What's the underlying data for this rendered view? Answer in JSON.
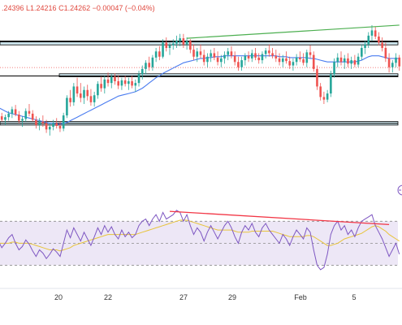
{
  "header": {
    "ohlc_text": ".24396  L1.24216  C1.24262  −0.00047 (−0.04%)"
  },
  "colors": {
    "up": "#26a69a",
    "down": "#ef5350",
    "ma": "#4a7cf0",
    "rsi": "#7e57c2",
    "rsi_ma": "#e8c43a",
    "rsi_band": "#ede7f6",
    "trend_price": "#4caf50",
    "trend_rsi": "#f23645",
    "zone_fill": "#cfe8f0",
    "zone_edge": "#000000"
  },
  "chart_data": [
    {
      "type": "candlestick",
      "title": "",
      "x_tick_labels": [
        "20",
        "22",
        "27",
        "29",
        "Feb",
        "5"
      ],
      "y_visible_range": [
        1.2312,
        1.249
      ],
      "horizontal_zones": [
        {
          "low": 1.24555,
          "high": 1.246
        },
        {
          "low": 1.2419,
          "high": 1.24225
        },
        {
          "low": 1.2364,
          "high": 1.2368
        }
      ],
      "horizontal_lines": [
        1.2459,
        1.242,
        1.2366
      ],
      "current_price_line": 1.24296,
      "trendline": {
        "from_index": 55,
        "from_price": 1.2463,
        "to_index": 117,
        "to_price": 1.2478
      },
      "candles": [
        [
          1.2377,
          1.2381,
          1.237,
          1.2374
        ],
        [
          1.2374,
          1.2378,
          1.2368,
          1.237
        ],
        [
          1.237,
          1.2376,
          1.2364,
          1.2373
        ],
        [
          1.2373,
          1.238,
          1.2369,
          1.2377
        ],
        [
          1.2377,
          1.2385,
          1.2372,
          1.2382
        ],
        [
          1.2382,
          1.2387,
          1.2374,
          1.2376
        ],
        [
          1.2376,
          1.238,
          1.2366,
          1.2369
        ],
        [
          1.2369,
          1.2374,
          1.2362,
          1.2371
        ],
        [
          1.2371,
          1.2383,
          1.2368,
          1.238
        ],
        [
          1.238,
          1.2388,
          1.2374,
          1.2377
        ],
        [
          1.2377,
          1.2381,
          1.2368,
          1.237
        ],
        [
          1.237,
          1.2374,
          1.236,
          1.2364
        ],
        [
          1.2364,
          1.2372,
          1.2358,
          1.2368
        ],
        [
          1.2368,
          1.2375,
          1.2362,
          1.2366
        ],
        [
          1.2366,
          1.237,
          1.2355,
          1.2359
        ],
        [
          1.2359,
          1.2366,
          1.2352,
          1.2362
        ],
        [
          1.2362,
          1.237,
          1.2358,
          1.2366
        ],
        [
          1.2366,
          1.2372,
          1.236,
          1.2363
        ],
        [
          1.2363,
          1.2368,
          1.2356,
          1.236
        ],
        [
          1.236,
          1.2378,
          1.2357,
          1.2375
        ],
        [
          1.2375,
          1.2398,
          1.2372,
          1.2395
        ],
        [
          1.2395,
          1.2404,
          1.2385,
          1.239
        ],
        [
          1.239,
          1.2412,
          1.2386,
          1.2408
        ],
        [
          1.2408,
          1.2418,
          1.2396,
          1.24
        ],
        [
          1.24,
          1.2412,
          1.239,
          1.2395
        ],
        [
          1.2395,
          1.2408,
          1.2388,
          1.2404
        ],
        [
          1.2404,
          1.241,
          1.2392,
          1.2397
        ],
        [
          1.2397,
          1.2405,
          1.2386,
          1.239
        ],
        [
          1.239,
          1.2402,
          1.2385,
          1.2398
        ],
        [
          1.2398,
          1.2414,
          1.2394,
          1.2411
        ],
        [
          1.2411,
          1.2419,
          1.2402,
          1.2406
        ],
        [
          1.2406,
          1.242,
          1.24,
          1.2416
        ],
        [
          1.2416,
          1.2424,
          1.2408,
          1.2412
        ],
        [
          1.2412,
          1.2422,
          1.2406,
          1.2419
        ],
        [
          1.2419,
          1.2423,
          1.241,
          1.2414
        ],
        [
          1.2414,
          1.2421,
          1.2405,
          1.2409
        ],
        [
          1.2409,
          1.2418,
          1.2404,
          1.2415
        ],
        [
          1.2415,
          1.242,
          1.2408,
          1.2411
        ],
        [
          1.2411,
          1.2418,
          1.2404,
          1.2414
        ],
        [
          1.2414,
          1.242,
          1.2406,
          1.2409
        ],
        [
          1.2409,
          1.2416,
          1.2402,
          1.2412
        ],
        [
          1.2412,
          1.2426,
          1.2408,
          1.2422
        ],
        [
          1.2422,
          1.2432,
          1.2416,
          1.2428
        ],
        [
          1.2428,
          1.2438,
          1.2422,
          1.2435
        ],
        [
          1.2435,
          1.2442,
          1.2426,
          1.243
        ],
        [
          1.243,
          1.2444,
          1.2426,
          1.2441
        ],
        [
          1.2441,
          1.2452,
          1.2436,
          1.2448
        ],
        [
          1.2448,
          1.2454,
          1.2438,
          1.2442
        ],
        [
          1.2442,
          1.2462,
          1.244,
          1.2458
        ],
        [
          1.2458,
          1.2464,
          1.2448,
          1.2452
        ],
        [
          1.2452,
          1.2458,
          1.2444,
          1.2455
        ],
        [
          1.2455,
          1.2462,
          1.245,
          1.2457
        ],
        [
          1.2457,
          1.2466,
          1.2452,
          1.246
        ],
        [
          1.246,
          1.2468,
          1.2454,
          1.2463
        ],
        [
          1.2463,
          1.2468,
          1.2452,
          1.2456
        ],
        [
          1.2456,
          1.2464,
          1.245,
          1.246
        ],
        [
          1.246,
          1.2462,
          1.2446,
          1.245
        ],
        [
          1.245,
          1.2456,
          1.2438,
          1.2442
        ],
        [
          1.2442,
          1.2452,
          1.2436,
          1.2448
        ],
        [
          1.2448,
          1.2456,
          1.244,
          1.2444
        ],
        [
          1.2444,
          1.245,
          1.2432,
          1.2436
        ],
        [
          1.2436,
          1.2446,
          1.243,
          1.2442
        ],
        [
          1.2442,
          1.245,
          1.2436,
          1.2446
        ],
        [
          1.2446,
          1.2452,
          1.2438,
          1.2441
        ],
        [
          1.2441,
          1.2448,
          1.2432,
          1.2436
        ],
        [
          1.2436,
          1.2444,
          1.243,
          1.244
        ],
        [
          1.244,
          1.2448,
          1.2434,
          1.2444
        ],
        [
          1.2444,
          1.2452,
          1.2438,
          1.2448
        ],
        [
          1.2448,
          1.2454,
          1.244,
          1.2443
        ],
        [
          1.2443,
          1.2448,
          1.2432,
          1.2436
        ],
        [
          1.2436,
          1.2442,
          1.2426,
          1.243
        ],
        [
          1.243,
          1.2442,
          1.2426,
          1.2438
        ],
        [
          1.2438,
          1.2446,
          1.2432,
          1.2443
        ],
        [
          1.2443,
          1.2448,
          1.2436,
          1.244
        ],
        [
          1.244,
          1.245,
          1.2436,
          1.2446
        ],
        [
          1.2446,
          1.2452,
          1.2438,
          1.2441
        ],
        [
          1.2441,
          1.2446,
          1.2434,
          1.2438
        ],
        [
          1.2438,
          1.2448,
          1.2434,
          1.2445
        ],
        [
          1.2445,
          1.2452,
          1.244,
          1.2449
        ],
        [
          1.2449,
          1.2456,
          1.2442,
          1.2446
        ],
        [
          1.2446,
          1.2452,
          1.244,
          1.2443
        ],
        [
          1.2443,
          1.245,
          1.2436,
          1.244
        ],
        [
          1.244,
          1.2446,
          1.2432,
          1.2436
        ],
        [
          1.2436,
          1.2444,
          1.243,
          1.244
        ],
        [
          1.244,
          1.2448,
          1.2434,
          1.2437
        ],
        [
          1.2437,
          1.2442,
          1.2428,
          1.2432
        ],
        [
          1.2432,
          1.244,
          1.2426,
          1.2436
        ],
        [
          1.2436,
          1.2445,
          1.2432,
          1.2441
        ],
        [
          1.2441,
          1.2448,
          1.2436,
          1.2439
        ],
        [
          1.2439,
          1.2446,
          1.2432,
          1.2435
        ],
        [
          1.2435,
          1.245,
          1.243,
          1.2447
        ],
        [
          1.2447,
          1.2455,
          1.244,
          1.2444
        ],
        [
          1.2444,
          1.2448,
          1.2425,
          1.2428
        ],
        [
          1.2428,
          1.2432,
          1.2404,
          1.2408
        ],
        [
          1.2408,
          1.2412,
          1.2392,
          1.2396
        ],
        [
          1.2396,
          1.2402,
          1.2388,
          1.2393
        ],
        [
          1.2393,
          1.2404,
          1.239,
          1.24
        ],
        [
          1.24,
          1.2426,
          1.2396,
          1.2422
        ],
        [
          1.2422,
          1.244,
          1.2418,
          1.2436
        ],
        [
          1.2436,
          1.2446,
          1.243,
          1.2441
        ],
        [
          1.2441,
          1.2448,
          1.2432,
          1.2436
        ],
        [
          1.2436,
          1.2444,
          1.2428,
          1.244
        ],
        [
          1.244,
          1.2446,
          1.243,
          1.2434
        ],
        [
          1.2434,
          1.2442,
          1.2428,
          1.2438
        ],
        [
          1.2438,
          1.2444,
          1.243,
          1.2433
        ],
        [
          1.2433,
          1.2446,
          1.243,
          1.2442
        ],
        [
          1.2442,
          1.2456,
          1.2438,
          1.2452
        ],
        [
          1.2452,
          1.246,
          1.2445,
          1.2456
        ],
        [
          1.2456,
          1.247,
          1.2452,
          1.2466
        ],
        [
          1.2466,
          1.2478,
          1.246,
          1.2472
        ],
        [
          1.2472,
          1.2476,
          1.2462,
          1.2465
        ],
        [
          1.2465,
          1.247,
          1.2455,
          1.2458
        ],
        [
          1.2458,
          1.2464,
          1.2448,
          1.2452
        ],
        [
          1.2452,
          1.2458,
          1.2436,
          1.244
        ],
        [
          1.244,
          1.2446,
          1.2424,
          1.243
        ],
        [
          1.243,
          1.2438,
          1.2424,
          1.2435
        ],
        [
          1.2435,
          1.2446,
          1.243,
          1.2441
        ],
        [
          1.2441,
          1.2444,
          1.2426,
          1.2431
        ]
      ],
      "moving_average": [
        1.2384,
        1.2382,
        1.238,
        1.2378,
        1.2377,
        1.2376,
        1.2375,
        1.2374,
        1.2373,
        1.2372,
        1.2371,
        1.237,
        1.2369,
        1.2368,
        1.2367,
        1.2366,
        1.2366,
        1.2365,
        1.2365,
        1.2366,
        1.2367,
        1.2369,
        1.2371,
        1.2373,
        1.2375,
        1.2377,
        1.2379,
        1.2381,
        1.2383,
        1.2385,
        1.2387,
        1.2389,
        1.2391,
        1.2393,
        1.2395,
        1.2397,
        1.2398,
        1.2399,
        1.24,
        1.2401,
        1.2402,
        1.2404,
        1.2406,
        1.2409,
        1.2412,
        1.2415,
        1.2418,
        1.242,
        1.2423,
        1.2425,
        1.2427,
        1.2429,
        1.2431,
        1.2433,
        1.2435,
        1.2436,
        1.2437,
        1.2438,
        1.2439,
        1.244,
        1.244,
        1.2441,
        1.2441,
        1.2442,
        1.2442,
        1.2442,
        1.2443,
        1.2443,
        1.2443,
        1.2443,
        1.2443,
        1.2443,
        1.2443,
        1.2443,
        1.2443,
        1.2443,
        1.2443,
        1.2443,
        1.2443,
        1.2443,
        1.2443,
        1.2443,
        1.2442,
        1.2442,
        1.2442,
        1.2441,
        1.2441,
        1.2441,
        1.2441,
        1.2441,
        1.2441,
        1.244,
        1.244,
        1.2439,
        1.2438,
        1.2437,
        1.2436,
        1.2436,
        1.2436,
        1.2436,
        1.2436,
        1.2436,
        1.2436,
        1.2436,
        1.2436,
        1.2437,
        1.2438,
        1.244,
        1.2442,
        1.2443,
        1.2443,
        1.2443,
        1.2442,
        1.2441,
        1.244,
        1.244,
        1.244,
        1.244
      ],
      "colors_note_key": "colors"
    },
    {
      "type": "line",
      "title": "",
      "y_range": [
        20,
        85
      ],
      "bands": [
        70,
        50,
        30
      ],
      "rsi_trendline": {
        "from_index": 50,
        "from_value": 79,
        "to_index": 114,
        "to_value": 67
      },
      "series": [
        {
          "values": [
            52,
            46,
            50,
            55,
            58,
            50,
            44,
            47,
            53,
            49,
            43,
            38,
            44,
            41,
            36,
            40,
            45,
            42,
            38,
            50,
            62,
            55,
            64,
            58,
            52,
            60,
            54,
            48,
            56,
            64,
            58,
            66,
            60,
            65,
            58,
            54,
            62,
            56,
            60,
            55,
            58,
            66,
            70,
            72,
            66,
            72,
            76,
            70,
            78,
            72,
            74,
            76,
            80,
            78,
            70,
            76,
            66,
            58,
            64,
            60,
            52,
            60,
            66,
            60,
            54,
            60,
            66,
            70,
            64,
            56,
            50,
            60,
            66,
            62,
            68,
            60,
            56,
            64,
            68,
            62,
            58,
            54,
            50,
            58,
            54,
            48,
            56,
            62,
            58,
            54,
            64,
            60,
            44,
            30,
            26,
            28,
            40,
            58,
            66,
            70,
            62,
            66,
            58,
            62,
            56,
            64,
            70,
            72,
            74,
            76,
            66,
            60,
            54,
            46,
            38,
            44,
            50,
            40
          ]
        },
        {
          "values": [
            50,
            50,
            50,
            50,
            51,
            51,
            50,
            50,
            50,
            50,
            49,
            48,
            47,
            46,
            45,
            44,
            44,
            44,
            43,
            44,
            45,
            46,
            48,
            49,
            50,
            51,
            52,
            53,
            54,
            55,
            56,
            57,
            58,
            58,
            58,
            58,
            58,
            58,
            58,
            58,
            58,
            59,
            60,
            61,
            62,
            63,
            64,
            65,
            66,
            67,
            68,
            69,
            70,
            71,
            71,
            71,
            70,
            69,
            68,
            67,
            66,
            65,
            64,
            63,
            62,
            62,
            62,
            62,
            62,
            61,
            60,
            60,
            60,
            60,
            61,
            61,
            61,
            61,
            61,
            61,
            61,
            60,
            59,
            58,
            57,
            56,
            56,
            56,
            56,
            56,
            57,
            57,
            56,
            54,
            52,
            50,
            48,
            48,
            49,
            50,
            52,
            54,
            55,
            56,
            57,
            58,
            59,
            61,
            63,
            65,
            66,
            65,
            63,
            61,
            58,
            56,
            54,
            52
          ]
        }
      ],
      "x_tick_labels": [
        "20",
        "22",
        "27",
        "29",
        "Feb",
        "5"
      ]
    }
  ]
}
